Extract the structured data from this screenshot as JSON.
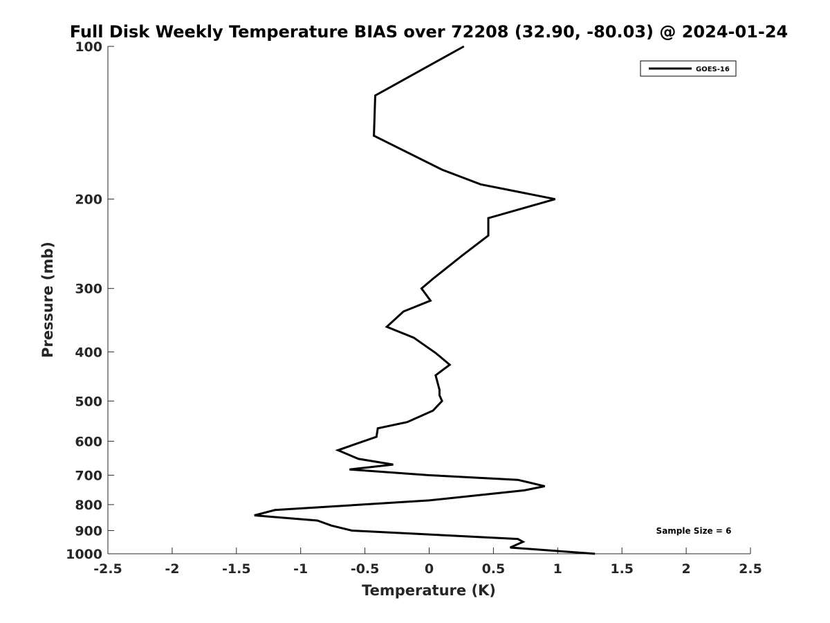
{
  "chart_data": {
    "type": "line",
    "title": "Full Disk Weekly Temperature BIAS over 72208 (32.90, -80.03) @ 2024-01-24",
    "xlabel": "Temperature (K)",
    "ylabel": "Pressure (mb)",
    "xlim": [
      -2.5,
      2.5
    ],
    "ylim": [
      100,
      1000
    ],
    "yscale": "log",
    "yreverse": true,
    "x_ticks": [
      -2.5,
      -2,
      -1.5,
      -1,
      -0.5,
      0,
      0.5,
      1,
      1.5,
      2,
      2.5
    ],
    "x_tick_labels": [
      "-2.5",
      "-2",
      "-1.5",
      "-1",
      "-0.5",
      "0",
      "0.5",
      "1",
      "1.5",
      "2",
      "2.5"
    ],
    "y_ticks": [
      100,
      200,
      300,
      400,
      500,
      600,
      700,
      800,
      900,
      1000
    ],
    "y_tick_labels": [
      "100",
      "200",
      "300",
      "400",
      "500",
      "600",
      "700",
      "800",
      "900",
      "1000"
    ],
    "grid": false,
    "legend_position": "top-right",
    "series": [
      {
        "name": "GOES-16",
        "color": "#000000",
        "points": [
          {
            "x": 0.27,
            "p": 100
          },
          {
            "x": -0.42,
            "p": 125
          },
          {
            "x": -0.43,
            "p": 150
          },
          {
            "x": 0.1,
            "p": 175
          },
          {
            "x": 0.4,
            "p": 187
          },
          {
            "x": 0.98,
            "p": 200
          },
          {
            "x": 0.46,
            "p": 218
          },
          {
            "x": 0.46,
            "p": 236
          },
          {
            "x": 0.26,
            "p": 258
          },
          {
            "x": 0.03,
            "p": 287
          },
          {
            "x": -0.06,
            "p": 300
          },
          {
            "x": 0.01,
            "p": 317
          },
          {
            "x": -0.2,
            "p": 333
          },
          {
            "x": -0.33,
            "p": 357
          },
          {
            "x": -0.12,
            "p": 375
          },
          {
            "x": 0.05,
            "p": 402
          },
          {
            "x": 0.16,
            "p": 424
          },
          {
            "x": 0.05,
            "p": 445
          },
          {
            "x": 0.08,
            "p": 475
          },
          {
            "x": 0.08,
            "p": 487
          },
          {
            "x": 0.1,
            "p": 500
          },
          {
            "x": 0.03,
            "p": 522
          },
          {
            "x": -0.17,
            "p": 550
          },
          {
            "x": -0.4,
            "p": 566
          },
          {
            "x": -0.41,
            "p": 588
          },
          {
            "x": -0.59,
            "p": 610
          },
          {
            "x": -0.71,
            "p": 625
          },
          {
            "x": -0.55,
            "p": 650
          },
          {
            "x": -0.28,
            "p": 667
          },
          {
            "x": -0.62,
            "p": 682
          },
          {
            "x": 0.0,
            "p": 700
          },
          {
            "x": 0.69,
            "p": 715
          },
          {
            "x": 0.9,
            "p": 736
          },
          {
            "x": 0.74,
            "p": 750
          },
          {
            "x": 0.0,
            "p": 785
          },
          {
            "x": -1.2,
            "p": 820
          },
          {
            "x": -1.36,
            "p": 840
          },
          {
            "x": -0.87,
            "p": 860
          },
          {
            "x": -0.76,
            "p": 880
          },
          {
            "x": -0.6,
            "p": 900
          },
          {
            "x": 0.69,
            "p": 935
          },
          {
            "x": 0.73,
            "p": 947
          },
          {
            "x": 0.63,
            "p": 972
          },
          {
            "x": 1.29,
            "p": 1000
          }
        ]
      }
    ],
    "annotations": [
      {
        "text": "Sample Size = 6"
      }
    ]
  }
}
